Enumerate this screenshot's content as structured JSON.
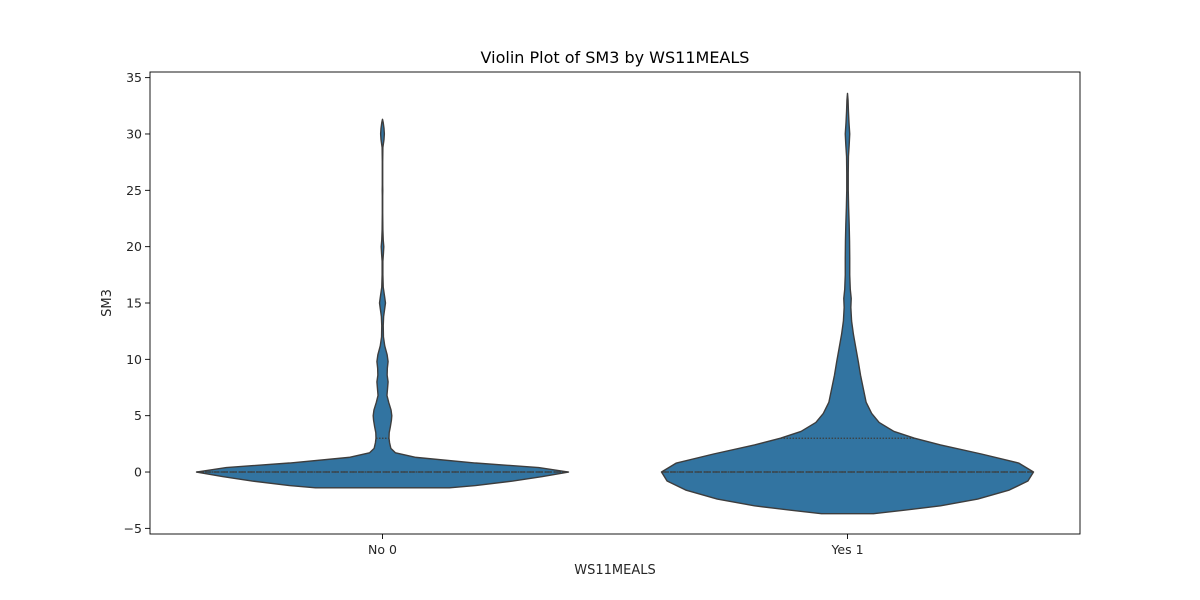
{
  "chart_data": {
    "type": "violin",
    "title": "Violin Plot of SM3 by WS11MEALS",
    "xlabel": "WS11MEALS",
    "ylabel": "SM3",
    "categories": [
      "No 0",
      "Yes 1"
    ],
    "ylim": [
      -5.5,
      35.5
    ],
    "yticks": [
      -5,
      0,
      5,
      10,
      15,
      20,
      25,
      30,
      35
    ],
    "grid": false,
    "legend": "none",
    "colors": {
      "fill": "#3274a1",
      "edge": "#3d3d3d"
    },
    "series": [
      {
        "category": "No 0",
        "median": 0,
        "q1": 0,
        "q3": 3,
        "density": [
          [
            -1.4,
            0.36
          ],
          [
            -1.2,
            0.5
          ],
          [
            -0.8,
            0.7
          ],
          [
            -0.4,
            0.86
          ],
          [
            0,
            1.0
          ],
          [
            0.4,
            0.84
          ],
          [
            0.8,
            0.5
          ],
          [
            1.3,
            0.18
          ],
          [
            1.7,
            0.07
          ],
          [
            2.1,
            0.045
          ],
          [
            2.6,
            0.038
          ],
          [
            3.0,
            0.035
          ],
          [
            3.5,
            0.036
          ],
          [
            4.0,
            0.042
          ],
          [
            4.6,
            0.048
          ],
          [
            5.0,
            0.05
          ],
          [
            5.5,
            0.046
          ],
          [
            6.2,
            0.033
          ],
          [
            6.8,
            0.024
          ],
          [
            7.4,
            0.027
          ],
          [
            8.0,
            0.03
          ],
          [
            8.6,
            0.025
          ],
          [
            9.2,
            0.026
          ],
          [
            9.8,
            0.03
          ],
          [
            10.4,
            0.025
          ],
          [
            11.2,
            0.012
          ],
          [
            12.0,
            0.005
          ],
          [
            13.0,
            0.004
          ],
          [
            13.8,
            0.006
          ],
          [
            14.4,
            0.011
          ],
          [
            15.0,
            0.016
          ],
          [
            15.6,
            0.011
          ],
          [
            16.4,
            0.004
          ],
          [
            17.5,
            0.002
          ],
          [
            18.7,
            0.002
          ],
          [
            19.4,
            0.005
          ],
          [
            20.0,
            0.007
          ],
          [
            20.6,
            0.004
          ],
          [
            21.5,
            0.002
          ],
          [
            23.0,
            0.001
          ],
          [
            24.5,
            0.001
          ],
          [
            25.0,
            0.0015
          ],
          [
            25.5,
            0.001
          ],
          [
            27.5,
            0.001
          ],
          [
            28.8,
            0.002
          ],
          [
            29.5,
            0.008
          ],
          [
            30.0,
            0.01
          ],
          [
            30.5,
            0.008
          ],
          [
            31.0,
            0.004
          ],
          [
            31.3,
            0.0
          ]
        ]
      },
      {
        "category": "Yes 1",
        "median": 0,
        "q1": 0,
        "q3": 3,
        "density": [
          [
            -3.7,
            0.14
          ],
          [
            -3.4,
            0.3
          ],
          [
            -3.0,
            0.5
          ],
          [
            -2.4,
            0.7
          ],
          [
            -1.6,
            0.87
          ],
          [
            -0.8,
            0.97
          ],
          [
            0,
            1.0
          ],
          [
            0.8,
            0.92
          ],
          [
            1.6,
            0.72
          ],
          [
            2.4,
            0.5
          ],
          [
            3.0,
            0.36
          ],
          [
            3.6,
            0.25
          ],
          [
            4.4,
            0.17
          ],
          [
            5.2,
            0.13
          ],
          [
            6.2,
            0.1
          ],
          [
            7.4,
            0.085
          ],
          [
            8.6,
            0.07
          ],
          [
            9.8,
            0.058
          ],
          [
            11.0,
            0.045
          ],
          [
            12.2,
            0.032
          ],
          [
            13.4,
            0.022
          ],
          [
            14.6,
            0.018
          ],
          [
            15.4,
            0.02
          ],
          [
            16.2,
            0.015
          ],
          [
            17.5,
            0.012
          ],
          [
            19.0,
            0.012
          ],
          [
            20.5,
            0.011
          ],
          [
            22.0,
            0.009
          ],
          [
            23.5,
            0.006
          ],
          [
            25.0,
            0.004
          ],
          [
            26.5,
            0.004
          ],
          [
            28.0,
            0.005
          ],
          [
            29.0,
            0.009
          ],
          [
            30.0,
            0.012
          ],
          [
            31.0,
            0.008
          ],
          [
            32.0,
            0.005
          ],
          [
            33.0,
            0.003
          ],
          [
            33.6,
            0.0
          ]
        ]
      }
    ]
  }
}
